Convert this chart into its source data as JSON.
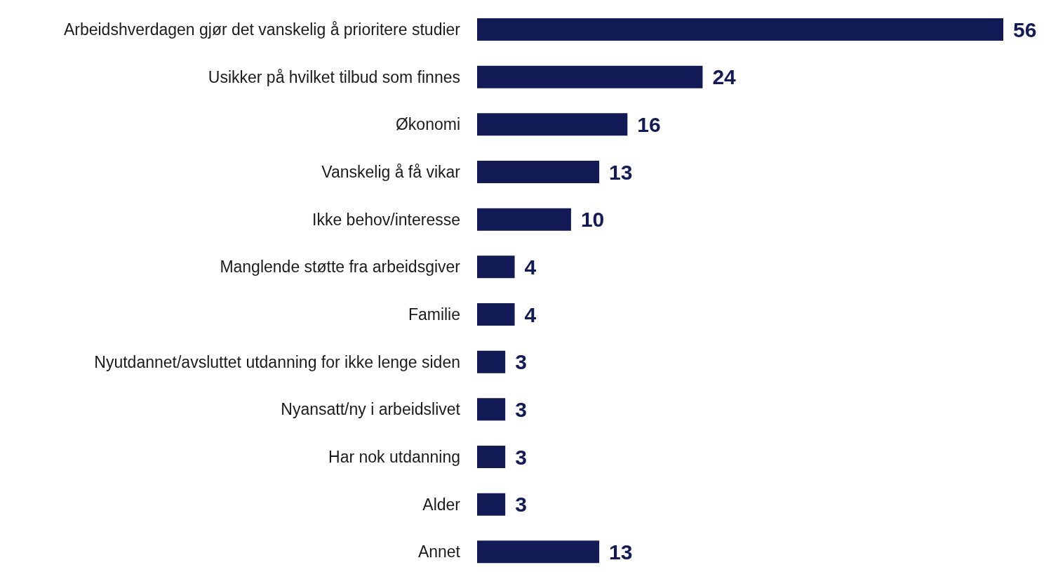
{
  "chart_data": {
    "type": "bar",
    "orientation": "horizontal",
    "categories": [
      "Arbeidshverdagen gjør det vanskelig å prioritere studier",
      "Usikker på hvilket tilbud som finnes",
      "Økonomi",
      "Vanskelig å få vikar",
      "Ikke behov/interesse",
      "Manglende støtte fra arbeidsgiver",
      "Familie",
      "Nyutdannet/avsluttet utdanning for ikke lenge siden",
      "Nyansatt/ny i arbeidslivet",
      "Har nok utdanning",
      "Alder",
      "Annet"
    ],
    "values": [
      56,
      24,
      16,
      13,
      10,
      4,
      4,
      3,
      3,
      3,
      3,
      13
    ],
    "color": "#131b57",
    "data_labels": true,
    "grid": false,
    "legend": false
  }
}
